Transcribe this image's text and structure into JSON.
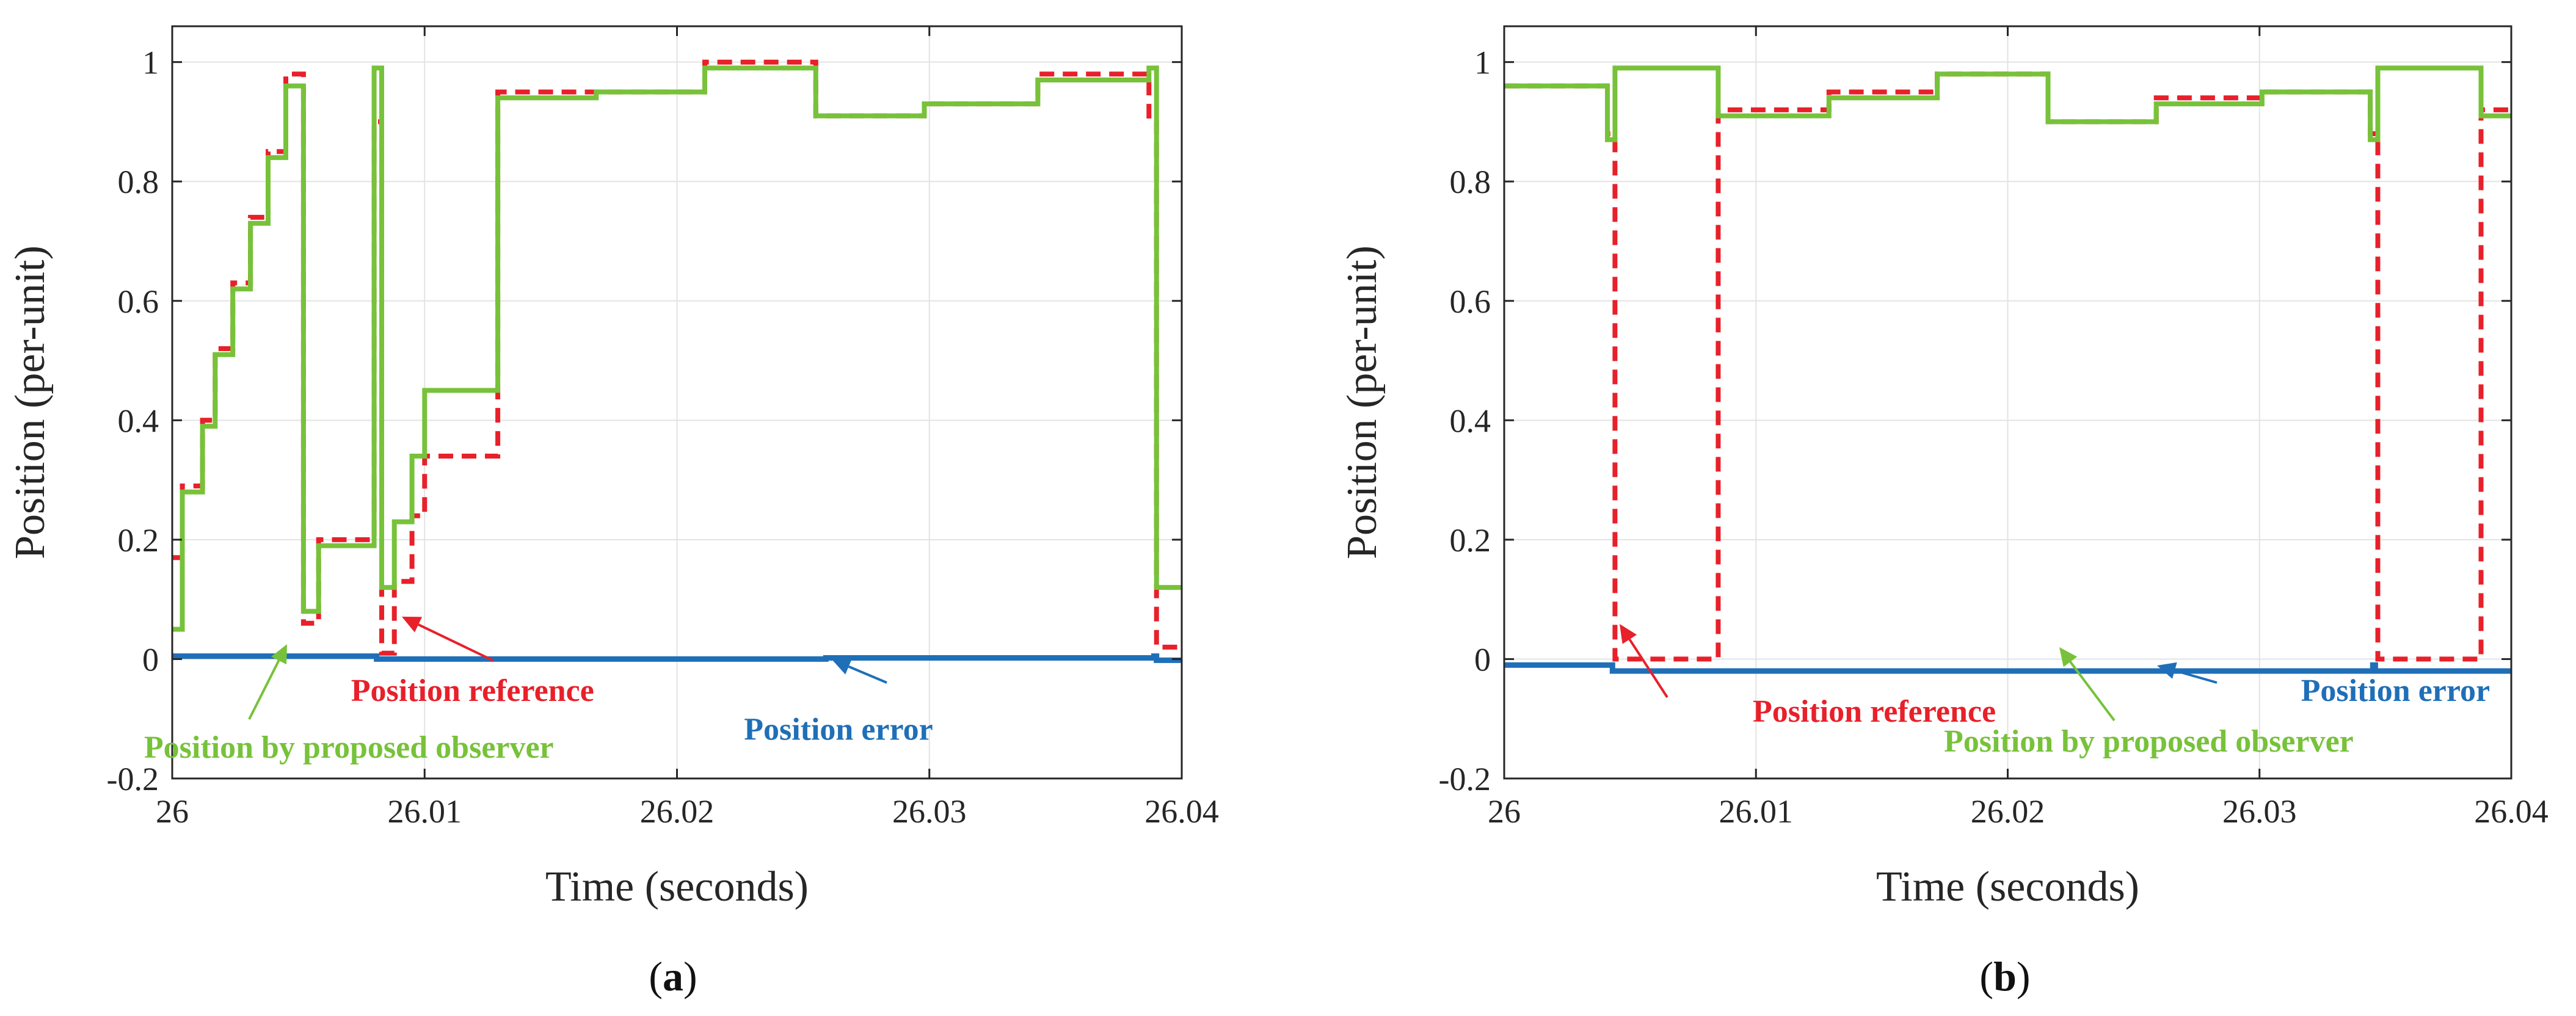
{
  "figure": {
    "labels": [
      {
        "open": "(",
        "letter": "a",
        "close": ")"
      },
      {
        "open": "(",
        "letter": "b",
        "close": ")"
      }
    ]
  },
  "chart_data": [
    {
      "type": "line",
      "panel": "a",
      "xlabel": "Time (seconds)",
      "ylabel": "Position (per-unit)",
      "xlim": [
        26,
        26.04
      ],
      "ylim": [
        -0.2,
        1.06
      ],
      "xticks": [
        26,
        26.01,
        26.02,
        26.03,
        26.04
      ],
      "xtick_labels": [
        "26",
        "26.01",
        "26.02",
        "26.03",
        "26.04"
      ],
      "yticks": [
        -0.2,
        0,
        0.2,
        0.4,
        0.6,
        0.8,
        1
      ],
      "ytick_labels": [
        "-0.2",
        "0",
        "0.2",
        "0.4",
        "0.6",
        "0.8",
        "1"
      ],
      "grid": true,
      "series": [
        {
          "name": "Position reference",
          "style": "dashed",
          "color": "#e8202a",
          "x": [
            26.0,
            26.0004,
            26.0012,
            26.0017,
            26.0024,
            26.0031,
            26.0038,
            26.0045,
            26.0052,
            26.0058,
            26.008,
            26.0083,
            26.0088,
            26.0095,
            26.01,
            26.0129,
            26.0168,
            26.0211,
            26.0255,
            26.0298,
            26.0343,
            26.0387,
            26.039
          ],
          "y": [
            0.17,
            0.29,
            0.4,
            0.52,
            0.63,
            0.74,
            0.85,
            0.98,
            0.06,
            0.2,
            0.9,
            0.01,
            0.13,
            0.24,
            0.34,
            0.95,
            0.95,
            1.0,
            0.91,
            0.93,
            0.98,
            0.9,
            0.02
          ]
        },
        {
          "name": "Position by proposed observer",
          "style": "solid",
          "color": "#77c23a",
          "x": [
            26.0,
            26.0004,
            26.0012,
            26.0017,
            26.0024,
            26.0031,
            26.0038,
            26.0045,
            26.0052,
            26.0058,
            26.008,
            26.0083,
            26.0088,
            26.0095,
            26.01,
            26.0129,
            26.0168,
            26.0211,
            26.0255,
            26.0298,
            26.0343,
            26.0387,
            26.039
          ],
          "y": [
            0.05,
            0.28,
            0.39,
            0.51,
            0.62,
            0.73,
            0.84,
            0.96,
            0.08,
            0.19,
            0.99,
            0.12,
            0.23,
            0.34,
            0.45,
            0.94,
            0.95,
            0.99,
            0.91,
            0.93,
            0.97,
            0.99,
            0.12
          ]
        },
        {
          "name": "Position error",
          "style": "solid",
          "color": "#1f6fb8",
          "x": [
            26.0,
            26.008,
            26.0081,
            26.0259,
            26.0389,
            26.039,
            26.04
          ],
          "y": [
            0.005,
            0.005,
            0.0,
            0.002,
            0.005,
            -0.002,
            -0.002
          ]
        }
      ],
      "annotations": [
        {
          "text": "Position reference",
          "color": "#e8202a",
          "x": 26.0119,
          "y": -0.07
        },
        {
          "text": "Position error",
          "color": "#1f6fb8",
          "x": 26.0264,
          "y": -0.135
        },
        {
          "text": "Position by proposed observer",
          "color": "#77c23a",
          "x": 26.007,
          "y": -0.165
        }
      ]
    },
    {
      "type": "line",
      "panel": "b",
      "xlabel": "Time (seconds)",
      "ylabel": "Position (per-unit)",
      "xlim": [
        26,
        26.04
      ],
      "ylim": [
        -0.2,
        1.06
      ],
      "xticks": [
        26,
        26.01,
        26.02,
        26.03,
        26.04
      ],
      "xtick_labels": [
        "26",
        "26.01",
        "26.02",
        "26.03",
        "26.04"
      ],
      "yticks": [
        -0.2,
        0,
        0.2,
        0.4,
        0.6,
        0.8,
        1
      ],
      "ytick_labels": [
        "-0.2",
        "0",
        "0.2",
        "0.4",
        "0.6",
        "0.8",
        "1"
      ],
      "grid": true,
      "series": [
        {
          "name": "Position reference",
          "style": "dashed",
          "color": "#e8202a",
          "x": [
            26.0,
            26.0041,
            26.0044,
            26.0085,
            26.0129,
            26.0172,
            26.0216,
            26.0259,
            26.0301,
            26.0344,
            26.0347,
            26.0388
          ],
          "y": [
            0.96,
            0.88,
            0.0,
            0.92,
            0.95,
            0.98,
            0.9,
            0.94,
            0.95,
            0.88,
            0.0,
            0.92
          ]
        },
        {
          "name": "Position by proposed observer",
          "style": "solid",
          "color": "#77c23a",
          "x": [
            26.0,
            26.0041,
            26.0044,
            26.0085,
            26.0129,
            26.0172,
            26.0216,
            26.0259,
            26.0301,
            26.0344,
            26.0347,
            26.0388
          ],
          "y": [
            0.96,
            0.87,
            0.99,
            0.91,
            0.94,
            0.98,
            0.9,
            0.93,
            0.95,
            0.87,
            0.99,
            0.91
          ]
        },
        {
          "name": "Position error",
          "style": "solid",
          "color": "#1f6fb8",
          "x": [
            26.0,
            26.0042,
            26.0043,
            26.0345,
            26.0346,
            26.04
          ],
          "y": [
            -0.01,
            -0.01,
            -0.02,
            -0.01,
            -0.02,
            -0.02
          ]
        }
      ],
      "annotations": [
        {
          "text": "Position reference",
          "color": "#e8202a",
          "x": 26.0147,
          "y": -0.105
        },
        {
          "text": "Position error",
          "color": "#1f6fb8",
          "x": 26.0354,
          "y": -0.07
        },
        {
          "text": "Position by proposed observer",
          "color": "#77c23a",
          "x": 26.0256,
          "y": -0.155
        }
      ]
    }
  ]
}
